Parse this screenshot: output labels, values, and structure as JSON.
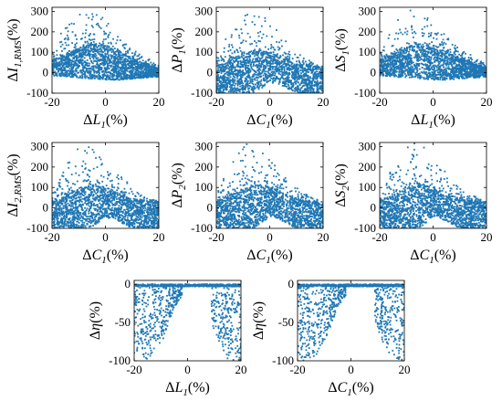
{
  "chart_data": [
    {
      "type": "scatter",
      "xlabel": "ΔL1(%)",
      "ylabel": "ΔI1,RMS(%)",
      "xlim": [
        -20,
        20
      ],
      "ylim": [
        -100,
        320
      ],
      "xticks": [
        "-20",
        "0",
        "20"
      ],
      "yticks": [
        "-100",
        "0",
        "100",
        "200",
        "300"
      ],
      "pattern": "hump",
      "color": "#1f77b4",
      "series": [
        {
          "x": [
            -20,
            -15,
            -10,
            -5,
            0,
            5,
            10,
            15,
            20
          ],
          "y_band_min": [
            -15,
            -20,
            -25,
            -30,
            -35,
            -35,
            -30,
            -25,
            -20
          ],
          "y_band_max": [
            60,
            90,
            120,
            140,
            130,
            100,
            70,
            45,
            20
          ],
          "y_sparse_max": [
            100,
            240,
            300,
            320,
            260,
            180,
            120,
            80,
            40
          ]
        }
      ]
    },
    {
      "type": "scatter",
      "xlabel": "ΔC1(%)",
      "ylabel": "ΔP1(%)",
      "xlim": [
        -20,
        20
      ],
      "ylim": [
        -100,
        320
      ],
      "xticks": [
        "-20",
        "0",
        "20"
      ],
      "yticks": [
        "-100",
        "0",
        "100",
        "200",
        "300"
      ],
      "pattern": "notch",
      "color": "#1f77b4",
      "series": [
        {
          "x": [
            -20,
            -15,
            -10,
            -5,
            0,
            5,
            10,
            15,
            20
          ],
          "y_band_min": [
            -100,
            -100,
            -100,
            -100,
            -40,
            -100,
            -100,
            -100,
            -100
          ],
          "y_band_max": [
            30,
            60,
            90,
            110,
            100,
            70,
            40,
            30,
            20
          ],
          "y_sparse_max": [
            80,
            200,
            310,
            320,
            250,
            170,
            100,
            60,
            30
          ]
        }
      ]
    },
    {
      "type": "scatter",
      "xlabel": "ΔL1(%)",
      "ylabel": "ΔS1(%)",
      "xlim": [
        -20,
        20
      ],
      "ylim": [
        -100,
        320
      ],
      "xticks": [
        "-20",
        "0",
        "20"
      ],
      "yticks": [
        "-100",
        "0",
        "100",
        "200",
        "300"
      ],
      "pattern": "hump",
      "color": "#1f77b4",
      "series": [
        {
          "x": [
            -20,
            -15,
            -10,
            -5,
            0,
            5,
            10,
            15,
            20
          ],
          "y_band_min": [
            -15,
            -20,
            -25,
            -30,
            -35,
            -35,
            -30,
            -25,
            -20
          ],
          "y_band_max": [
            60,
            90,
            120,
            140,
            130,
            100,
            70,
            45,
            20
          ],
          "y_sparse_max": [
            100,
            240,
            300,
            320,
            260,
            180,
            120,
            80,
            40
          ]
        }
      ]
    },
    {
      "type": "scatter",
      "xlabel": "ΔC1(%)",
      "ylabel": "ΔI2,RMS(%)",
      "xlim": [
        -20,
        20
      ],
      "ylim": [
        -100,
        320
      ],
      "xticks": [
        "-20",
        "0",
        "20"
      ],
      "yticks": [
        "-100",
        "0",
        "100",
        "200",
        "300"
      ],
      "pattern": "notch",
      "color": "#1f77b4",
      "series": [
        {
          "x": [
            -20,
            -15,
            -10,
            -5,
            0,
            5,
            10,
            15,
            20
          ],
          "y_band_min": [
            -100,
            -100,
            -100,
            -100,
            -40,
            -100,
            -100,
            -100,
            -100
          ],
          "y_band_max": [
            30,
            60,
            90,
            110,
            100,
            70,
            40,
            30,
            20
          ],
          "y_sparse_max": [
            80,
            200,
            310,
            320,
            250,
            170,
            100,
            60,
            30
          ]
        }
      ]
    },
    {
      "type": "scatter",
      "xlabel": "ΔC1(%)",
      "ylabel": "ΔP2(%)",
      "xlim": [
        -20,
        20
      ],
      "ylim": [
        -100,
        320
      ],
      "xticks": [
        "-20",
        "0",
        "20"
      ],
      "yticks": [
        "-100",
        "0",
        "100",
        "200",
        "300"
      ],
      "pattern": "notch",
      "color": "#1f77b4",
      "series": [
        {
          "x": [
            -20,
            -15,
            -10,
            -5,
            0,
            5,
            10,
            15,
            20
          ],
          "y_band_min": [
            -100,
            -100,
            -100,
            -100,
            -40,
            -100,
            -100,
            -100,
            -100
          ],
          "y_band_max": [
            30,
            60,
            90,
            110,
            100,
            70,
            40,
            30,
            20
          ],
          "y_sparse_max": [
            80,
            200,
            310,
            320,
            250,
            170,
            100,
            60,
            30
          ]
        }
      ]
    },
    {
      "type": "scatter",
      "xlabel": "ΔC1(%)",
      "ylabel": "ΔS2(%)",
      "xlim": [
        -20,
        20
      ],
      "ylim": [
        -100,
        320
      ],
      "xticks": [
        "-20",
        "0",
        "20"
      ],
      "yticks": [
        "-100",
        "0",
        "100",
        "200",
        "300"
      ],
      "pattern": "notch",
      "color": "#1f77b4",
      "series": [
        {
          "x": [
            -20,
            -15,
            -10,
            -5,
            0,
            5,
            10,
            15,
            20
          ],
          "y_band_min": [
            -100,
            -100,
            -100,
            -100,
            -40,
            -100,
            -100,
            -100,
            -100
          ],
          "y_band_max": [
            30,
            60,
            90,
            110,
            100,
            70,
            40,
            30,
            20
          ],
          "y_sparse_max": [
            80,
            200,
            310,
            320,
            250,
            170,
            100,
            60,
            30
          ]
        }
      ]
    },
    {
      "type": "scatter",
      "xlabel": "ΔL1(%)",
      "ylabel": "Δη(%)",
      "xlim": [
        -20,
        20
      ],
      "ylim": [
        -100,
        5
      ],
      "xticks": [
        "-20",
        "0",
        "20"
      ],
      "yticks": [
        "-100",
        "-50",
        "0"
      ],
      "pattern": "efficiency",
      "color": "#1f77b4",
      "series": [
        {
          "x": [
            -20,
            -15,
            -10,
            -5,
            0,
            5,
            10,
            15,
            20
          ],
          "y_min": [
            -100,
            -100,
            -80,
            -30,
            -5,
            -5,
            -60,
            -100,
            -100
          ],
          "y_max": [
            0,
            0,
            0,
            0,
            0,
            0,
            0,
            0,
            0
          ]
        }
      ]
    },
    {
      "type": "scatter",
      "xlabel": "ΔC1(%)",
      "ylabel": "Δη(%)",
      "xlim": [
        -20,
        20
      ],
      "ylim": [
        -100,
        5
      ],
      "xticks": [
        "-20",
        "0",
        "20"
      ],
      "yticks": [
        "-100",
        "-50",
        "0"
      ],
      "pattern": "efficiency",
      "color": "#1f77b4",
      "series": [
        {
          "x": [
            -20,
            -15,
            -10,
            -5,
            0,
            5,
            10,
            15,
            20
          ],
          "y_min": [
            -100,
            -100,
            -80,
            -30,
            -5,
            -5,
            -60,
            -100,
            -100
          ],
          "y_max": [
            0,
            0,
            0,
            0,
            0,
            0,
            0,
            0,
            0
          ]
        }
      ]
    }
  ]
}
